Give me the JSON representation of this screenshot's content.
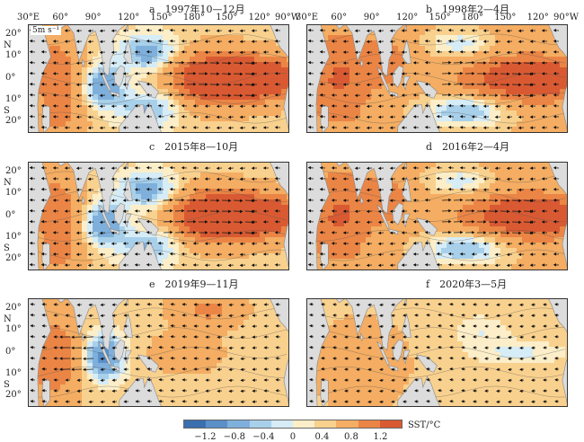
{
  "panels": [
    {
      "id": "a",
      "letter": "a",
      "date": "1997年10—12月",
      "pattern": "elnino_strong"
    },
    {
      "id": "b",
      "letter": "b",
      "date": "1998年2—4月",
      "pattern": "elnino_decay"
    },
    {
      "id": "c",
      "letter": "c",
      "date": "2015年8—10月",
      "pattern": "elnino_strong"
    },
    {
      "id": "d",
      "letter": "d",
      "date": "2016年2—4月",
      "pattern": "elnino_decay"
    },
    {
      "id": "e",
      "letter": "e",
      "date": "2019年9—11月",
      "pattern": "iod"
    },
    {
      "id": "f",
      "letter": "f",
      "date": "2020年3—5月",
      "pattern": "weak"
    }
  ],
  "lon_labels": [
    "30°E",
    "60°",
    "90°",
    "120°",
    "150°",
    "180°",
    "150°",
    "120°",
    "90°W"
  ],
  "lat_labels": [
    "20°",
    "10°",
    "0°",
    "10°",
    "20°"
  ],
  "lat_hemi": {
    "north": "N",
    "south": "S"
  },
  "vector_ref": "5m s⁻¹",
  "colorbar": {
    "title": "SST/°C",
    "ticks": [
      "−1.2",
      "−0.8",
      "−0.4",
      "0",
      "0.4",
      "0.8",
      "1.2"
    ],
    "colors": [
      "#3a6fb0",
      "#5a8fc8",
      "#7fb0dc",
      "#a8d0ea",
      "#d6ecf6",
      "#fbeec8",
      "#f9d18e",
      "#f4ad62",
      "#eb8545",
      "#d95a32"
    ]
  },
  "colors": {
    "land": "#dcdcdc",
    "coast": "#888888"
  }
}
